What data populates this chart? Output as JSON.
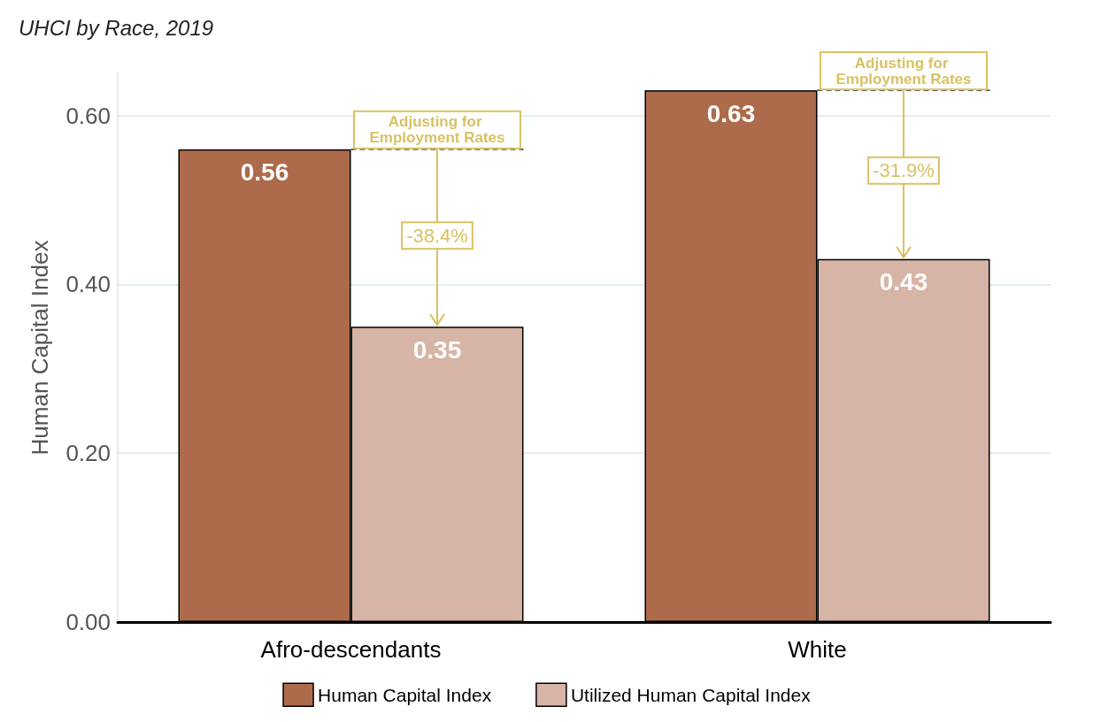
{
  "chart_data": {
    "type": "bar",
    "title": "UHCI by Race, 2019",
    "ylabel": "Human Capital Index",
    "categories": [
      "Afro-descendants",
      "White"
    ],
    "series": [
      {
        "name": "Human Capital Index",
        "color": "#ad6b4b",
        "values": [
          0.56,
          0.63
        ]
      },
      {
        "name": "Utilized Human Capital Index",
        "color": "#d6b4a6",
        "values": [
          0.35,
          0.43
        ]
      }
    ],
    "ylim": [
      0,
      0.65
    ],
    "yticks": [
      {
        "value": 0,
        "label": "0.00"
      },
      {
        "value": 0.2,
        "label": "0.20"
      },
      {
        "value": 0.4,
        "label": "0.40"
      },
      {
        "value": 0.6,
        "label": "0.60"
      }
    ],
    "data_labels": true,
    "grid": "y",
    "legend": "bottom",
    "annotations": [
      {
        "text": "Adjusting for Employment Rates",
        "x": "Afro-descendants",
        "y": 0.56
      },
      {
        "text": "-38.4%",
        "x": "Afro-descendants",
        "y": 0.458
      },
      {
        "text": "Adjusting for Employment Rates",
        "x": "White",
        "y": 0.63
      },
      {
        "text": "-31.9%",
        "x": "White",
        "y": 0.535
      }
    ]
  }
}
